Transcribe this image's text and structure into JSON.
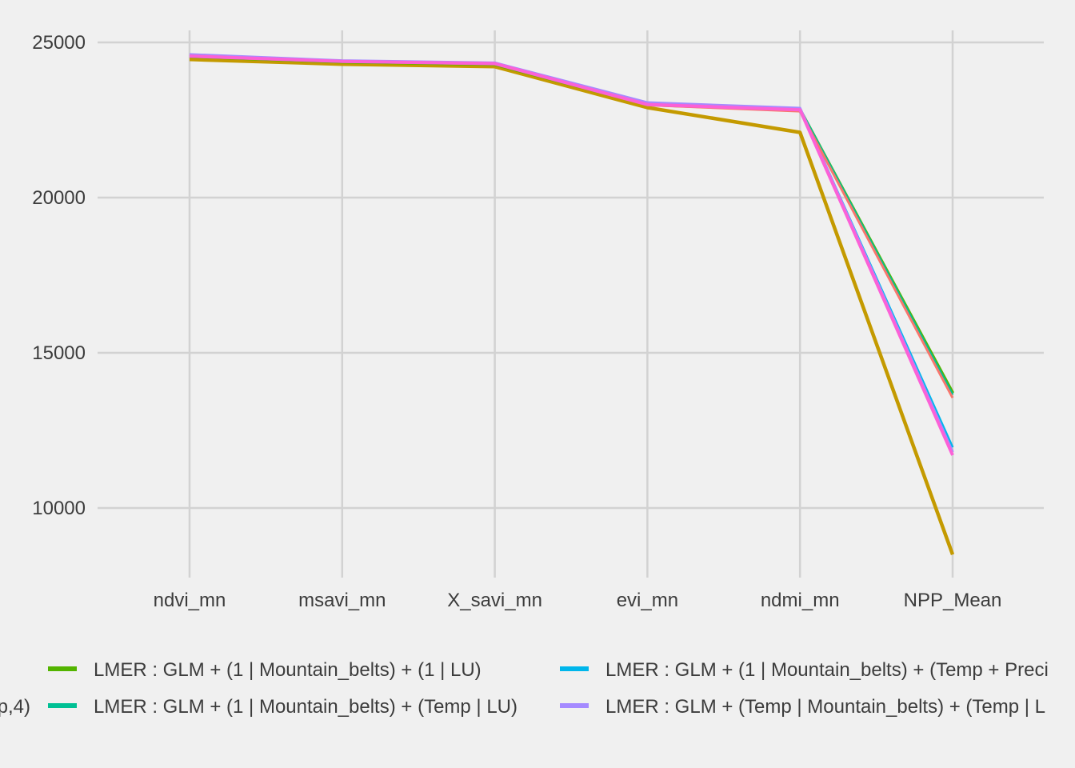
{
  "chart_data": {
    "type": "line",
    "categories": [
      "ndvi_mn",
      "msavi_mn",
      "X_savi_mn",
      "evi_mn",
      "ndmi_mn",
      "NPP_Mean"
    ],
    "yticks": [
      10000,
      15000,
      20000,
      25000
    ],
    "ylim": [
      8000,
      25400
    ],
    "grid": true,
    "legend_position": "bottom",
    "series": [
      {
        "name": "",
        "color": "#c49a00",
        "values": [
          24450,
          24300,
          24220,
          22900,
          22100,
          8500
        ]
      },
      {
        "name": "LMER : GLM + (1 | Mountain_belts) + (1 | LU)",
        "color": "#53b400",
        "values": [
          24550,
          24380,
          24300,
          23000,
          22820,
          13700
        ]
      },
      {
        "name": "LMER : GLM + (1 | Mountain_belts) + (Temp | LU)",
        "color": "#00c094",
        "values": [
          24580,
          24390,
          24310,
          23020,
          22850,
          13650
        ]
      },
      {
        "name": "LMER : GLM + (1 | Mountain_belts) + (Temp + Preci",
        "color": "#00b6eb",
        "values": [
          24600,
          24400,
          24330,
          23050,
          22870,
          11950
        ]
      },
      {
        "name": "LMER : GLM + (Temp | Mountain_belts) + (Temp | L",
        "color": "#a58aff",
        "values": [
          24610,
          24410,
          24340,
          23060,
          22880,
          11800
        ]
      },
      {
        "name": "",
        "color": "#f8766d",
        "values": [
          24540,
          24380,
          24300,
          22980,
          22780,
          13550
        ]
      },
      {
        "name": "",
        "color": "#fb61d7",
        "values": [
          24560,
          24390,
          24320,
          23000,
          22830,
          11700
        ]
      }
    ],
    "legend_cut_label": "p,4)"
  }
}
